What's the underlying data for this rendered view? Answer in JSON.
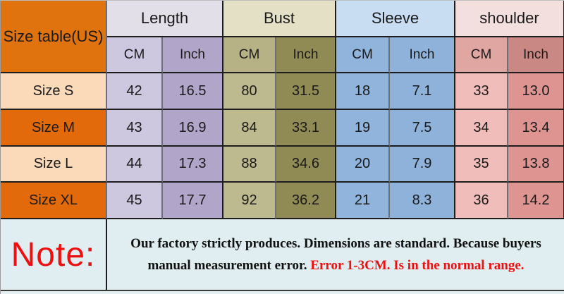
{
  "chart_data": {
    "type": "table",
    "title": "Size table(US)",
    "column_groups": [
      "Length",
      "Bust",
      "Sleeve",
      "shoulder"
    ],
    "sub_columns": [
      "CM",
      "Inch"
    ],
    "rows": [
      {
        "label": "Size S",
        "values": [
          "42",
          "16.5",
          "80",
          "31.5",
          "18",
          "7.1",
          "33",
          "13.0"
        ]
      },
      {
        "label": "Size M",
        "values": [
          "43",
          "16.9",
          "84",
          "33.1",
          "19",
          "7.5",
          "34",
          "13.4"
        ]
      },
      {
        "label": "Size L",
        "values": [
          "44",
          "17.3",
          "88",
          "34.6",
          "20",
          "7.9",
          "35",
          "13.8"
        ]
      },
      {
        "label": "Size XL",
        "values": [
          "45",
          "17.7",
          "92",
          "36.2",
          "21",
          "8.3",
          "36",
          "14.2"
        ]
      }
    ]
  },
  "note": {
    "label": "Note:",
    "line1": "Our factory strictly produces. Dimensions are standard. Because buyers",
    "line2_black": "manual measurement error.",
    "line2_red": "Error 1-3CM. Is in the normal range."
  },
  "colors": {
    "header_orange": "#E1730F",
    "row_orange": "#E26A0A",
    "row_peach": "#FBDAB9",
    "length_group": "#E3DFE9",
    "length_cm": "#CEC7E0",
    "length_inch": "#B1A5C9",
    "bust_group": "#E3E0C6",
    "bust_cm": "#BEBA8F",
    "bust_inch": "#908A55",
    "sleeve_group": "#C8DDF2",
    "sleeve_cm": "#91B4DC",
    "sleeve_inch": "#8FB2DB",
    "shoulder_group": "#F3E0DE",
    "shoulder_cm": "#F0BDBA",
    "shoulder_inch": "#DE9592",
    "note_background": "#E0EEF1",
    "note_red": "#EE1010",
    "text": "#1A1A1A"
  }
}
